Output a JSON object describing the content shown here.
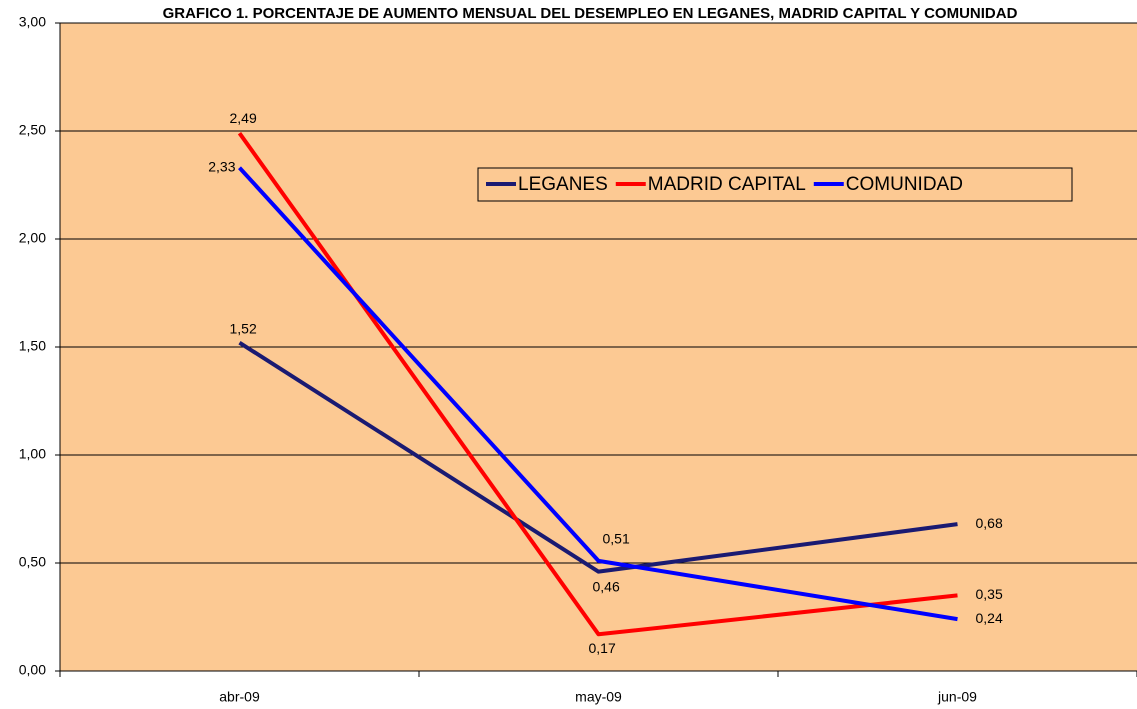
{
  "chart_data": {
    "type": "line",
    "title": "GRAFICO 1. PORCENTAJE DE AUMENTO MENSUAL DEL DESEMPLEO EN LEGANES, MADRID CAPITAL Y COMUNIDAD",
    "categories": [
      "abr-09",
      "may-09",
      "jun-09"
    ],
    "series": [
      {
        "name": "LEGANES",
        "color": "#1a1a72",
        "values": [
          1.52,
          0.46,
          0.68
        ],
        "value_labels": [
          "1,52",
          "0,46",
          "0,68"
        ]
      },
      {
        "name": "MADRID CAPITAL",
        "color": "#ff0000",
        "values": [
          2.49,
          0.17,
          0.35
        ],
        "value_labels": [
          "2,49",
          "0,17",
          "0,35"
        ]
      },
      {
        "name": "COMUNIDAD",
        "color": "#0000ff",
        "values": [
          2.33,
          0.51,
          0.24
        ],
        "value_labels": [
          "2,33",
          "0,51",
          "0,24"
        ]
      }
    ],
    "ylim": [
      0,
      3
    ],
    "yticks": [
      {
        "value": 0,
        "label": "0,00"
      },
      {
        "value": 0.5,
        "label": "0,50"
      },
      {
        "value": 1,
        "label": "1,00"
      },
      {
        "value": 1.5,
        "label": "1,50"
      },
      {
        "value": 2,
        "label": "2,00"
      },
      {
        "value": 2.5,
        "label": "2,50"
      },
      {
        "value": 3,
        "label": "3,00"
      }
    ],
    "grid": true,
    "plot_background": "#fcc993",
    "legend": "upper right"
  }
}
